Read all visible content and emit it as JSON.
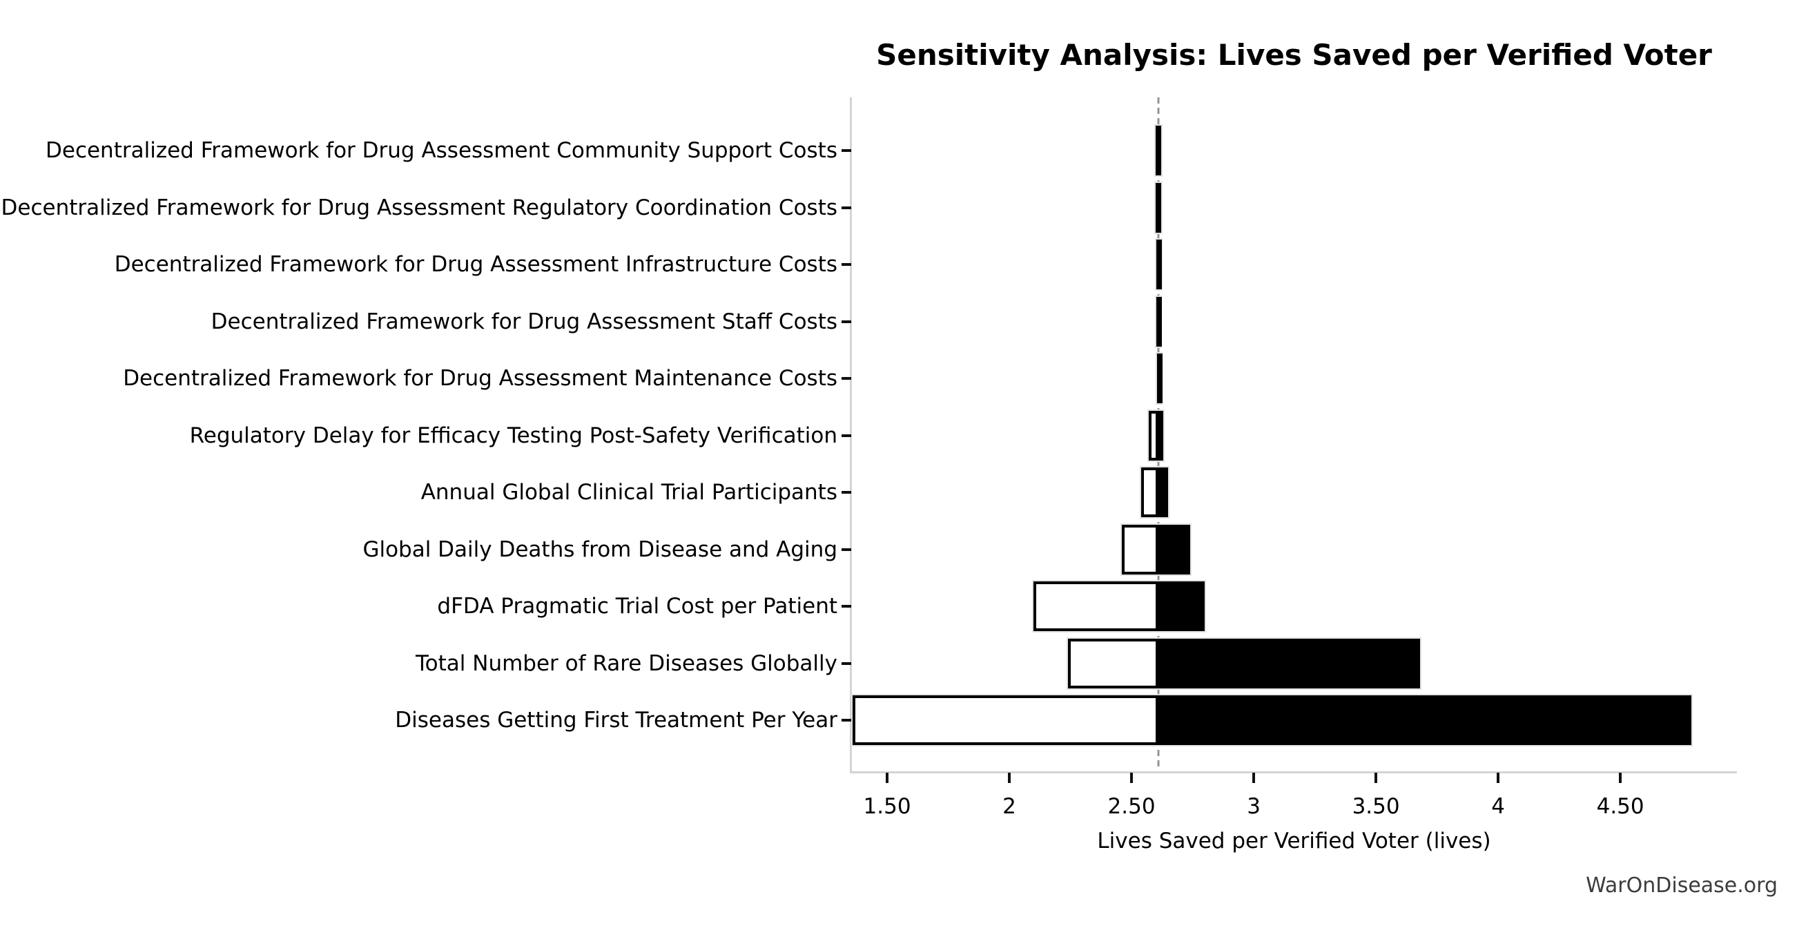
{
  "title": "Sensitivity Analysis: Lives Saved per Verified Voter",
  "watermark": "WarOnDisease.org",
  "chart_data": {
    "type": "bar",
    "subtype": "tornado-horizontal",
    "title": "Sensitivity Analysis: Lives Saved per Verified Voter",
    "xlabel": "Lives Saved per Verified Voter (lives)",
    "ylabel": "",
    "baseline": 2.61,
    "xlim": [
      1.353,
      4.977
    ],
    "x_ticks": [
      1.5,
      2,
      2.5,
      3,
      3.5,
      4,
      4.5
    ],
    "x_tick_labels": [
      "1.50",
      "2",
      "2.50",
      "3",
      "3.50",
      "4",
      "4.50"
    ],
    "grid": false,
    "legend": "none",
    "bars_top_to_bottom": [
      {
        "label": "Decentralized Framework for Drug Assessment Community Support Costs",
        "low": 2.6,
        "high": 2.62
      },
      {
        "label": "Decentralized Framework for Drug Assessment Regulatory Coordination Costs",
        "low": 2.6,
        "high": 2.62
      },
      {
        "label": "Decentralized Framework for Drug Assessment Infrastructure Costs",
        "low": 2.601,
        "high": 2.62
      },
      {
        "label": "Decentralized Framework for Drug Assessment Staff Costs",
        "low": 2.602,
        "high": 2.618
      },
      {
        "label": "Decentralized Framework for Drug Assessment Maintenance Costs",
        "low": 2.604,
        "high": 2.616
      },
      {
        "label": "Regulatory Delay for Efficacy Testing Post-Safety Verification",
        "low": 2.57,
        "high": 2.63
      },
      {
        "label": "Annual Global Clinical Trial Participants",
        "low": 2.54,
        "high": 2.65
      },
      {
        "label": "Global Daily Deaths from Disease and Aging",
        "low": 2.46,
        "high": 2.74
      },
      {
        "label": "dFDA Pragmatic Trial Cost per Patient",
        "low": 2.1,
        "high": 2.8
      },
      {
        "label": "Total Number of Rare Diseases Globally",
        "low": 2.24,
        "high": 3.68
      },
      {
        "label": "Diseases Getting First Treatment Per Year",
        "low": 1.36,
        "high": 4.79
      }
    ],
    "colors": {
      "low_segment_fill": "#ffffff",
      "high_segment_fill": "#000000",
      "bar_border": "#000000",
      "bar_outer_edge": "#e2e2e2",
      "baseline_dash": "#949494",
      "spine": "#d4d4d4",
      "tick": "#101010",
      "text": "#000000",
      "watermark": "#3c3c3c"
    }
  }
}
